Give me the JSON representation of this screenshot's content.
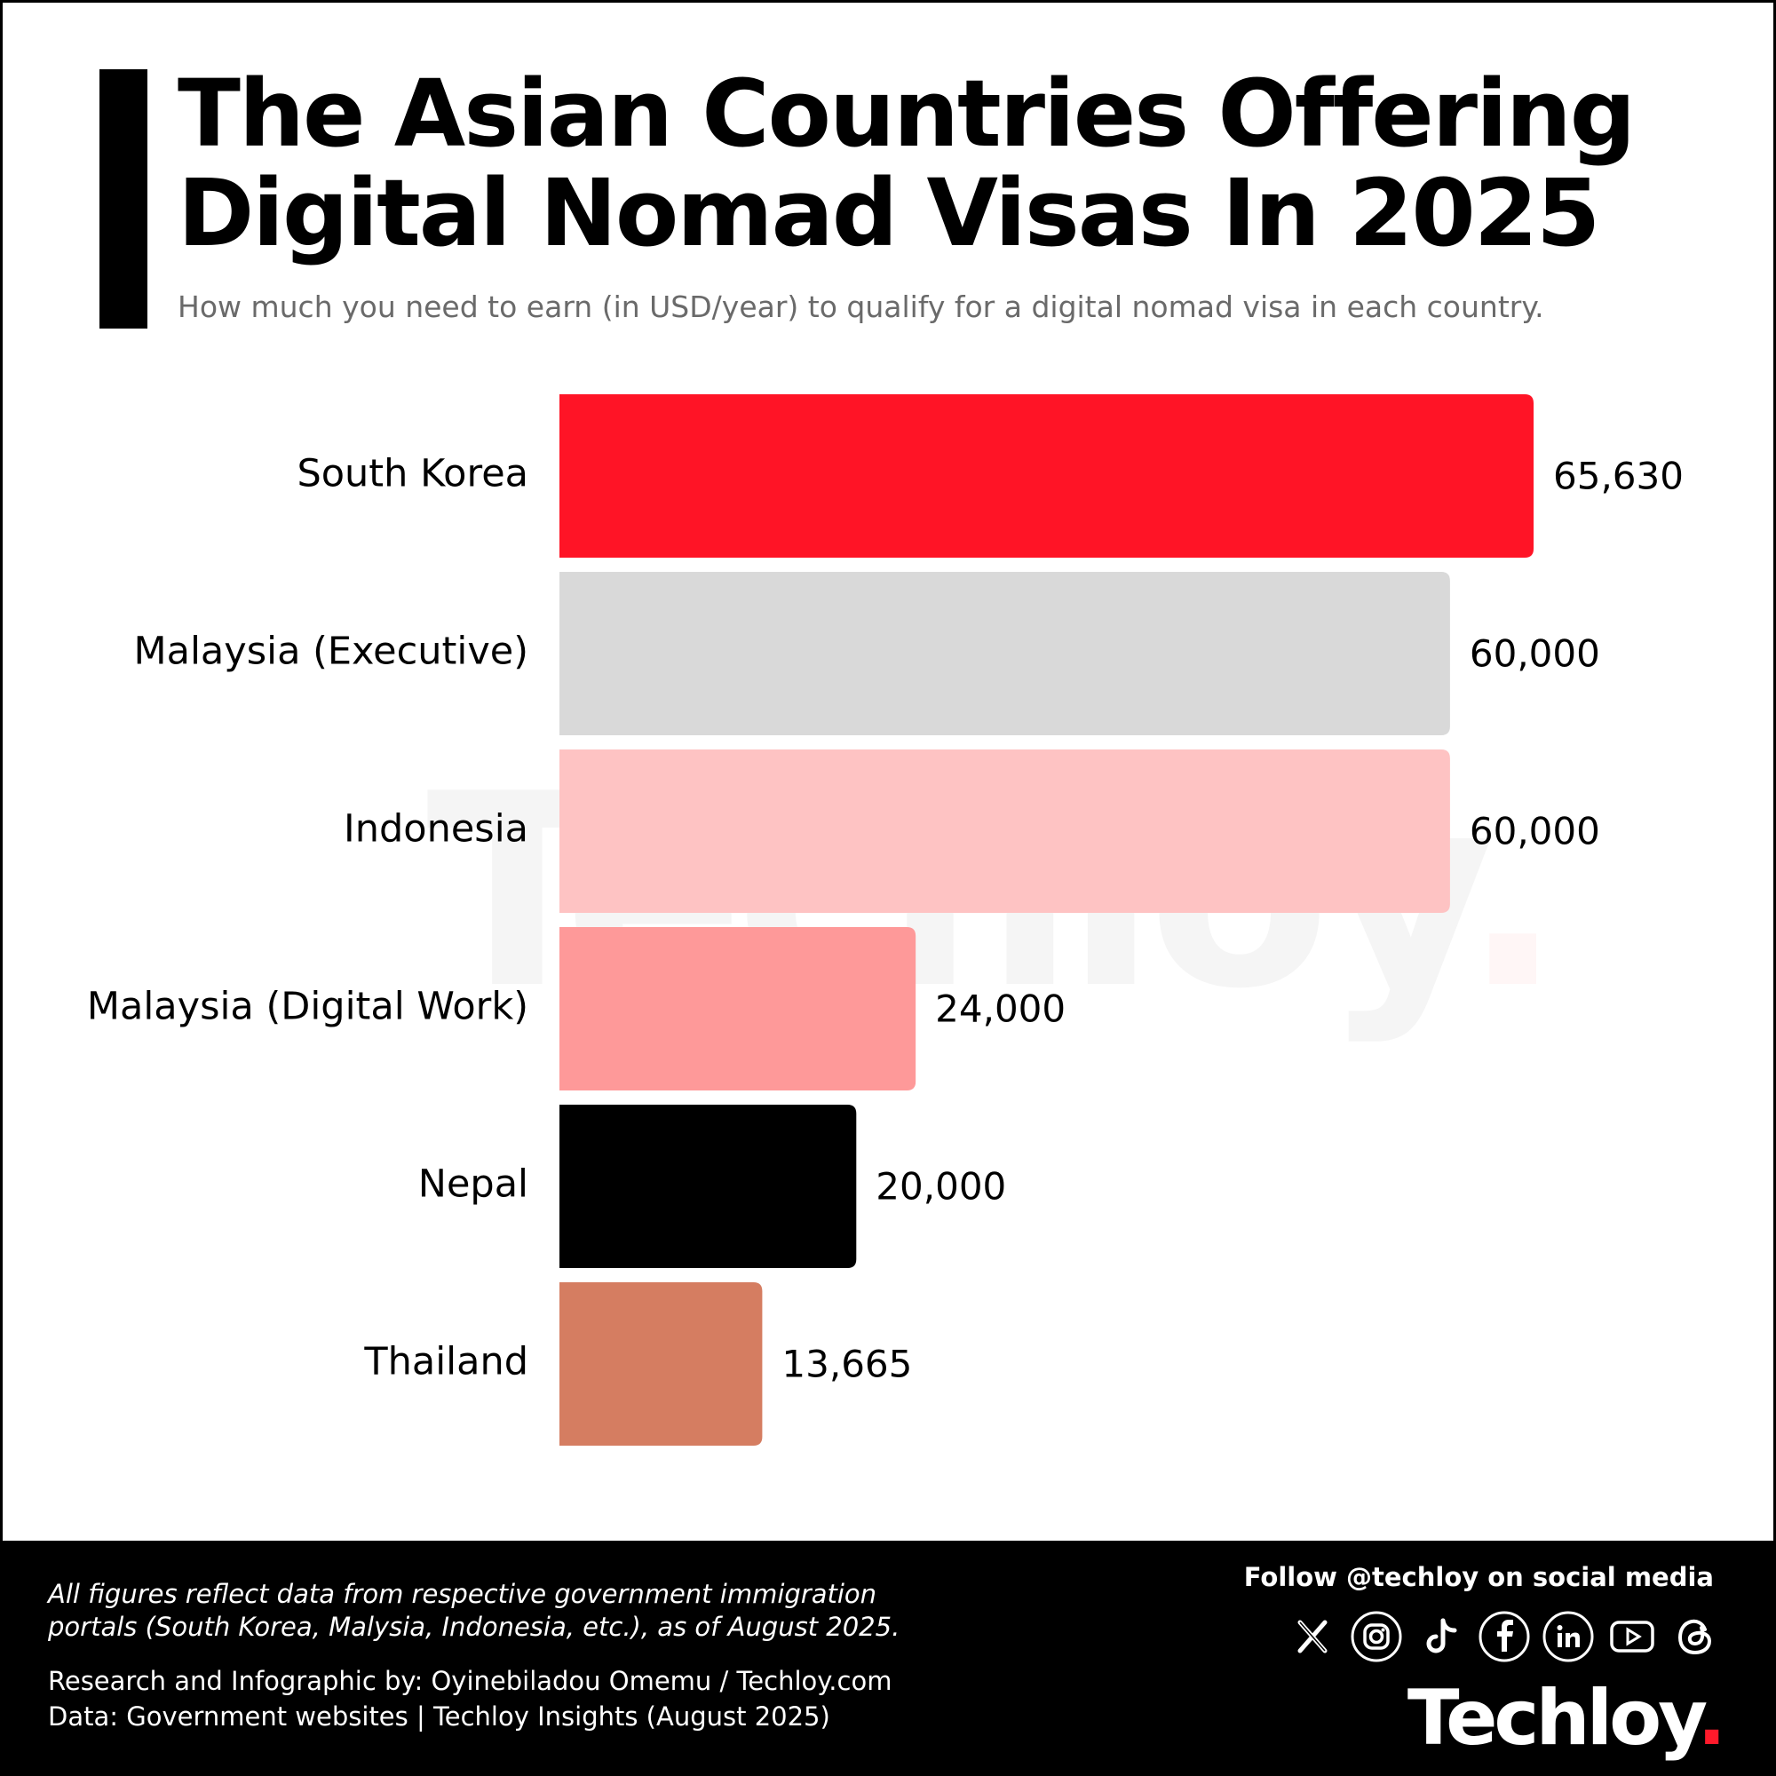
{
  "header": {
    "title_line1": "The Asian Countries Offering",
    "title_line2": "Digital Nomad Visas In 2025",
    "subtitle": "How much you need to earn (in USD/year) to qualify for a digital nomad visa in each country."
  },
  "watermark": {
    "text": "Techloy",
    "dot": "."
  },
  "chart_data": {
    "type": "bar",
    "orientation": "horizontal",
    "title": "The Asian Countries Offering Digital Nomad Visas In 2025",
    "subtitle": "How much you need to earn (in USD/year) to qualify for a digital nomad visa in each country.",
    "categories": [
      "South Korea",
      "Malaysia (Executive)",
      "Indonesia",
      "Malaysia (Digital Work)",
      "Nepal",
      "Thailand"
    ],
    "values": [
      65630,
      60000,
      60000,
      24000,
      20000,
      13665
    ],
    "value_labels": [
      "65,630",
      "60,000",
      "60,000",
      "24,000",
      "20,000",
      "13,665"
    ],
    "colors": [
      "#ff1426",
      "#d9d9d9",
      "#fec3c3",
      "#fe9999",
      "#000000",
      "#d57d61"
    ],
    "xlim": [
      0,
      65630
    ],
    "xlabel": "",
    "ylabel": "",
    "grid": false,
    "legend": "none"
  },
  "footer": {
    "note": "All figures reflect data from respective government immigration portals (South Korea, Malysia, Indonesia, etc.), as of August 2025.",
    "credit": "Research and Infographic by: Oyinebiladou Omemu / Techloy.com",
    "data_source": "Data: Government websites | Techloy Insights (August 2025)",
    "follow": "Follow @techloy on social media",
    "social_icons": [
      "x-icon",
      "instagram-icon",
      "tiktok-icon",
      "facebook-icon",
      "linkedin-icon",
      "youtube-icon",
      "threads-icon"
    ],
    "logo_text": "Techloy",
    "logo_dot": "."
  }
}
